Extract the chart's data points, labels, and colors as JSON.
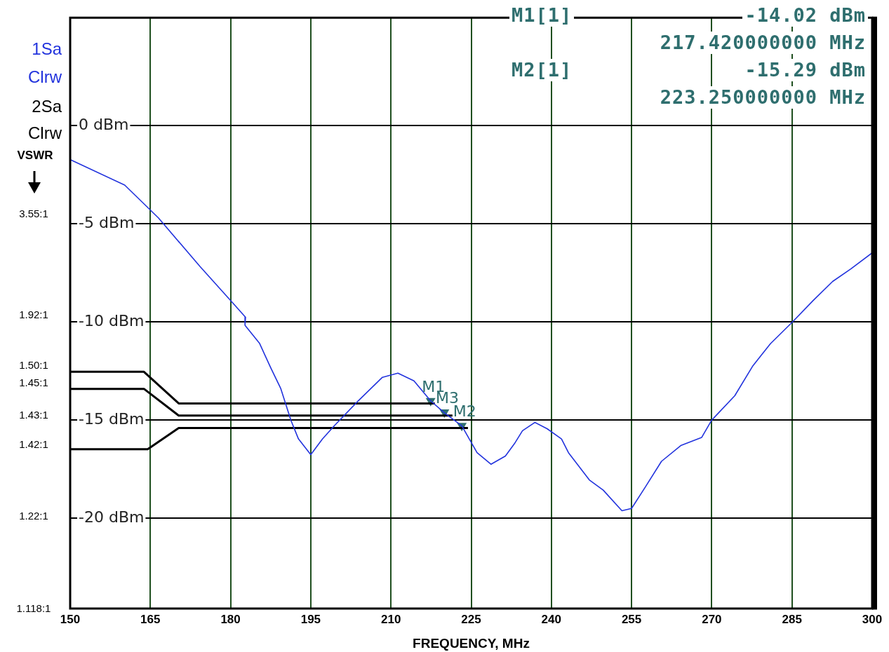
{
  "chart_data": {
    "type": "line",
    "xlabel": "FREQUENCY, MHz",
    "xlim": [
      150,
      300
    ],
    "xticks": [
      150,
      165,
      180,
      195,
      210,
      225,
      240,
      255,
      270,
      285,
      300
    ],
    "ylim": [
      -24.6,
      5.5
    ],
    "yticks": [
      {
        "value": 0,
        "label": "0 dBm"
      },
      {
        "value": -5,
        "label": "-5 dBm"
      },
      {
        "value": -10,
        "label": "-10 dBm"
      },
      {
        "value": -15,
        "label": "-15 dBm"
      },
      {
        "value": -20,
        "label": "-20 dBm"
      }
    ],
    "grid": true,
    "legend": false,
    "series": [
      {
        "color": "#2233dd",
        "x": [
          150.1,
          160.2,
          166.5,
          174.3,
          180.4,
          182.8,
          182.7,
          185.4,
          187.5,
          189.4,
          191.3,
          192.7,
          195.0,
          197.2,
          199.5,
          203.8,
          208.4,
          211.3,
          214.3,
          217.42,
          220.0,
          223.25,
          226.1,
          228.7,
          231.4,
          233.1,
          234.6,
          236.9,
          239.2,
          241.9,
          243.2,
          247.1,
          249.7,
          253.2,
          255.0,
          257.6,
          260.6,
          264.2,
          268.1,
          270.0,
          274.3,
          277.7,
          281.0,
          285.0,
          289.0,
          292.6,
          296.0,
          300.0
        ],
        "values": [
          -1.74,
          -3.03,
          -4.7,
          -7.18,
          -9.03,
          -9.76,
          -10.17,
          -11.08,
          -12.33,
          -13.4,
          -15.02,
          -15.96,
          -16.76,
          -15.96,
          -15.26,
          -14.04,
          -12.82,
          -12.61,
          -13.0,
          -14.02,
          -14.63,
          -15.29,
          -16.66,
          -17.25,
          -16.83,
          -16.2,
          -15.54,
          -15.12,
          -15.44,
          -15.96,
          -16.66,
          -18.05,
          -18.57,
          -19.62,
          -19.5,
          -18.4,
          -17.1,
          -16.3,
          -15.89,
          -15.0,
          -13.76,
          -12.23,
          -11.1,
          -10.03,
          -8.9,
          -7.94,
          -7.3,
          -6.48
        ]
      },
      {
        "color": "#000000",
        "x": [
          150,
          163.8,
          170.3,
          218.2
        ],
        "values": [
          -12.54,
          -12.54,
          -14.15,
          -14.15
        ]
      },
      {
        "color": "#000000",
        "x": [
          150,
          163.8,
          170.3,
          221.5
        ],
        "values": [
          -13.41,
          -13.41,
          -14.77,
          -14.77
        ]
      },
      {
        "color": "#000000",
        "x": [
          150,
          164.5,
          170.3,
          224.4
        ],
        "values": [
          -16.48,
          -16.48,
          -15.4,
          -15.4
        ]
      },
      {
        "type": "scatter",
        "marker": "triangle",
        "color": "#2e6e6e",
        "x": [
          217.42,
          220.0,
          223.25
        ],
        "values": [
          -14.02,
          -14.6,
          -15.29
        ]
      }
    ],
    "annotations": [
      "M1[1]",
      "-14.02 dBm",
      "217.420000000 MHz",
      "M2[1]",
      "-15.29 dBm",
      "223.250000000 MHz",
      "1Sa",
      "Clrw",
      "2Sa",
      "Clrw",
      "VSWR",
      "3.55:1",
      "1.92:1",
      "1.50:1",
      "1.45:1",
      "1.43:1",
      "1.42:1",
      "1.22:1",
      "1.118:1",
      {
        "text": "M1",
        "x": 217.42,
        "y": -14.02
      },
      {
        "text": "M3",
        "x": 220.0,
        "y": -14.6
      },
      {
        "text": "M2",
        "x": 223.25,
        "y": -15.29
      }
    ]
  }
}
